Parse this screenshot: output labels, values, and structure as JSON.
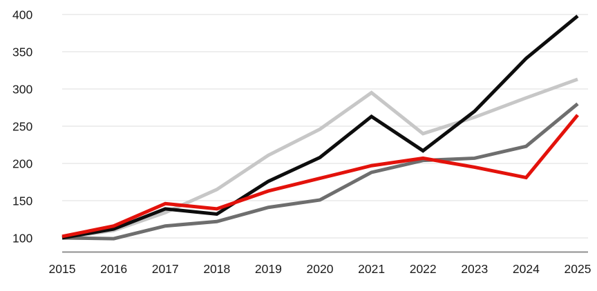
{
  "chart_data": {
    "type": "line",
    "title": "",
    "xlabel": "",
    "ylabel": "",
    "x_labels": [
      "2015",
      "2016",
      "2017",
      "2018",
      "2019",
      "2020",
      "2021",
      "2022",
      "2023",
      "2024",
      "2025"
    ],
    "y_ticks": [
      100,
      150,
      200,
      250,
      300,
      350,
      400
    ],
    "ylim": [
      81,
      405
    ],
    "grid": "horizontal-only",
    "legend_position": "none",
    "series": [
      {
        "name": "light-gray-series",
        "color": "#c7c7c7",
        "values": [
          100,
          110,
          134,
          165,
          211,
          246,
          295,
          240,
          262,
          288,
          313
        ]
      },
      {
        "name": "dark-gray-series",
        "color": "#6e6e6e",
        "values": [
          100,
          99,
          116,
          122,
          141,
          151,
          188,
          204,
          207,
          223,
          280
        ]
      },
      {
        "name": "black-series",
        "color": "#0d0d0d",
        "values": [
          100,
          112,
          139,
          132,
          176,
          208,
          263,
          217,
          270,
          341,
          398
        ]
      },
      {
        "name": "red-series",
        "color": "#e3120b",
        "values": [
          102,
          116,
          146,
          139,
          163,
          180,
          197,
          207,
          195,
          181,
          265
        ]
      }
    ],
    "colors": {
      "grid": "#e3e3e3",
      "axis_baseline": "#8f8f8f",
      "tick_text": "#1a1a1a",
      "background": "#ffffff"
    }
  }
}
